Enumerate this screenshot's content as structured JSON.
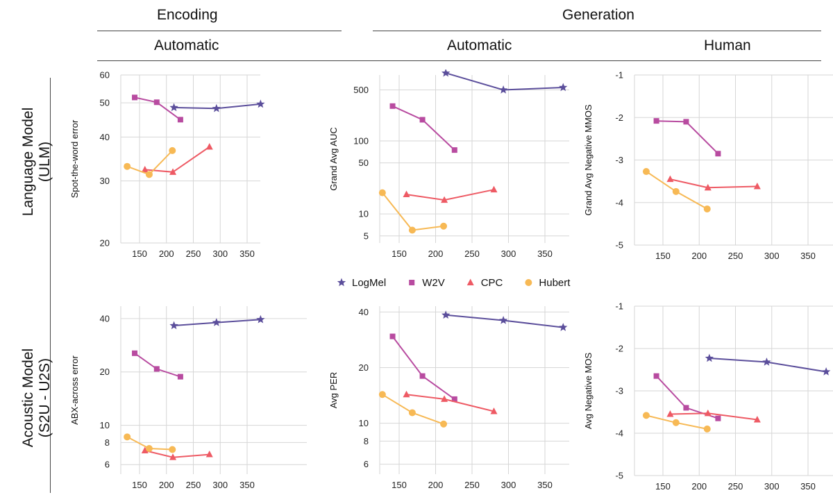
{
  "headers": {
    "encoding": "Encoding",
    "generation": "Generation",
    "automatic_left": "Automatic",
    "automatic_mid": "Automatic",
    "human": "Human"
  },
  "rows": {
    "ulm": "Language Model\n(ULM)",
    "s2u": "Acoustic Model\n(S2U - U2S)"
  },
  "legend": [
    {
      "name": "LogMel",
      "color": "#5b4e9b",
      "marker": "star"
    },
    {
      "name": "W2V",
      "color": "#b84ba0",
      "marker": "square"
    },
    {
      "name": "CPC",
      "color": "#ee5a64",
      "marker": "triangle"
    },
    {
      "name": "Hubert",
      "color": "#f7b955",
      "marker": "circle"
    }
  ],
  "chart_data": [
    {
      "id": "ulm-spot",
      "type": "line",
      "ylabel": "Spot-the-word error",
      "yscale": "log",
      "ylim": [
        20,
        60
      ],
      "yticks": [
        20,
        30,
        40,
        50,
        60
      ],
      "xlim": [
        120,
        375
      ],
      "xticks": [
        150,
        200,
        250,
        300,
        350
      ],
      "series": [
        {
          "name": "LogMel",
          "x": [
            214,
            293,
            375
          ],
          "y": [
            48.5,
            48.2,
            49.6
          ]
        },
        {
          "name": "W2V",
          "x": [
            141,
            182,
            226
          ],
          "y": [
            51.8,
            50.2,
            44.8
          ]
        },
        {
          "name": "CPC",
          "x": [
            160,
            212,
            280
          ],
          "y": [
            32.3,
            31.8,
            37.5
          ]
        },
        {
          "name": "Hubert",
          "x": [
            127,
            168,
            211
          ],
          "y": [
            33.0,
            31.3,
            36.6
          ]
        }
      ]
    },
    {
      "id": "ulm-auc",
      "type": "line",
      "ylabel": "Grand Avg  AUC",
      "yscale": "log",
      "ylim": [
        4,
        800
      ],
      "yticks": [
        5,
        10,
        50,
        100,
        500
      ],
      "xlim": [
        120,
        375
      ],
      "xticks": [
        150,
        200,
        250,
        300,
        350
      ],
      "series": [
        {
          "name": "LogMel",
          "x": [
            214,
            293,
            375
          ],
          "y": [
            850,
            500,
            540
          ]
        },
        {
          "name": "W2V",
          "x": [
            141,
            182,
            226
          ],
          "y": [
            300,
            195,
            75
          ]
        },
        {
          "name": "CPC",
          "x": [
            160,
            212,
            280
          ],
          "y": [
            18.5,
            15.5,
            21.5
          ]
        },
        {
          "name": "Hubert",
          "x": [
            127,
            168,
            211
          ],
          "y": [
            19.5,
            6.0,
            6.8
          ]
        }
      ]
    },
    {
      "id": "ulm-mmos",
      "type": "line",
      "ylabel": "Grand Avg Negative MMOS",
      "yscale": "linear",
      "ylim": [
        -5,
        -1
      ],
      "yticks": [
        -5,
        -4,
        -3,
        -2,
        -1
      ],
      "xlim": [
        120,
        375
      ],
      "xticks": [
        150,
        200,
        250,
        300,
        350
      ],
      "series": [
        {
          "name": "W2V",
          "x": [
            141,
            182,
            226
          ],
          "y": [
            -2.08,
            -2.1,
            -2.85
          ]
        },
        {
          "name": "CPC",
          "x": [
            160,
            212,
            280
          ],
          "y": [
            -3.45,
            -3.65,
            -3.62
          ]
        },
        {
          "name": "Hubert",
          "x": [
            127,
            168,
            211
          ],
          "y": [
            -3.27,
            -3.74,
            -4.15
          ]
        }
      ]
    },
    {
      "id": "s2u-abx",
      "type": "line",
      "ylabel": "ABX-across error",
      "yscale": "log",
      "ylim": [
        5.3,
        47
      ],
      "yticks": [
        6,
        8,
        10,
        20,
        40
      ],
      "xlim": [
        120,
        375
      ],
      "xticks": [
        150,
        200,
        250,
        300,
        350
      ],
      "series": [
        {
          "name": "LogMel",
          "x": [
            214,
            293,
            375
          ],
          "y": [
            36.5,
            38.0,
            39.5
          ]
        },
        {
          "name": "W2V",
          "x": [
            141,
            182,
            226
          ],
          "y": [
            25.5,
            20.8,
            18.8
          ]
        },
        {
          "name": "CPC",
          "x": [
            160,
            212,
            280
          ],
          "y": [
            7.2,
            6.6,
            6.85
          ]
        },
        {
          "name": "Hubert",
          "x": [
            127,
            168,
            211
          ],
          "y": [
            8.6,
            7.4,
            7.3
          ]
        }
      ]
    },
    {
      "id": "s2u-per",
      "type": "line",
      "ylabel": "Avg PER",
      "yscale": "log",
      "ylim": [
        5.3,
        43
      ],
      "yticks": [
        6,
        8,
        10,
        20,
        40
      ],
      "xlim": [
        120,
        375
      ],
      "xticks": [
        150,
        200,
        250,
        300,
        350
      ],
      "series": [
        {
          "name": "LogMel",
          "x": [
            214,
            293,
            375
          ],
          "y": [
            38.5,
            36.0,
            33.0
          ]
        },
        {
          "name": "W2V",
          "x": [
            141,
            182,
            226
          ],
          "y": [
            29.5,
            18.0,
            13.5
          ]
        },
        {
          "name": "CPC",
          "x": [
            160,
            212,
            280
          ],
          "y": [
            14.3,
            13.5,
            11.6
          ]
        },
        {
          "name": "Hubert",
          "x": [
            127,
            168,
            211
          ],
          "y": [
            14.3,
            11.4,
            9.9
          ]
        }
      ]
    },
    {
      "id": "s2u-mos",
      "type": "line",
      "ylabel": "Avg Negative MOS",
      "yscale": "linear",
      "ylim": [
        -5,
        -1
      ],
      "yticks": [
        -5,
        -4,
        -3,
        -2,
        -1
      ],
      "xlim": [
        120,
        375
      ],
      "xticks": [
        150,
        200,
        250,
        300,
        350
      ],
      "series": [
        {
          "name": "LogMel",
          "x": [
            214,
            293,
            375
          ],
          "y": [
            -2.23,
            -2.32,
            -2.55
          ]
        },
        {
          "name": "W2V",
          "x": [
            141,
            182,
            226
          ],
          "y": [
            -2.65,
            -3.4,
            -3.65
          ]
        },
        {
          "name": "CPC",
          "x": [
            160,
            212,
            280
          ],
          "y": [
            -3.55,
            -3.53,
            -3.68
          ]
        },
        {
          "name": "Hubert",
          "x": [
            127,
            168,
            211
          ],
          "y": [
            -3.58,
            -3.75,
            -3.9
          ]
        }
      ]
    }
  ]
}
